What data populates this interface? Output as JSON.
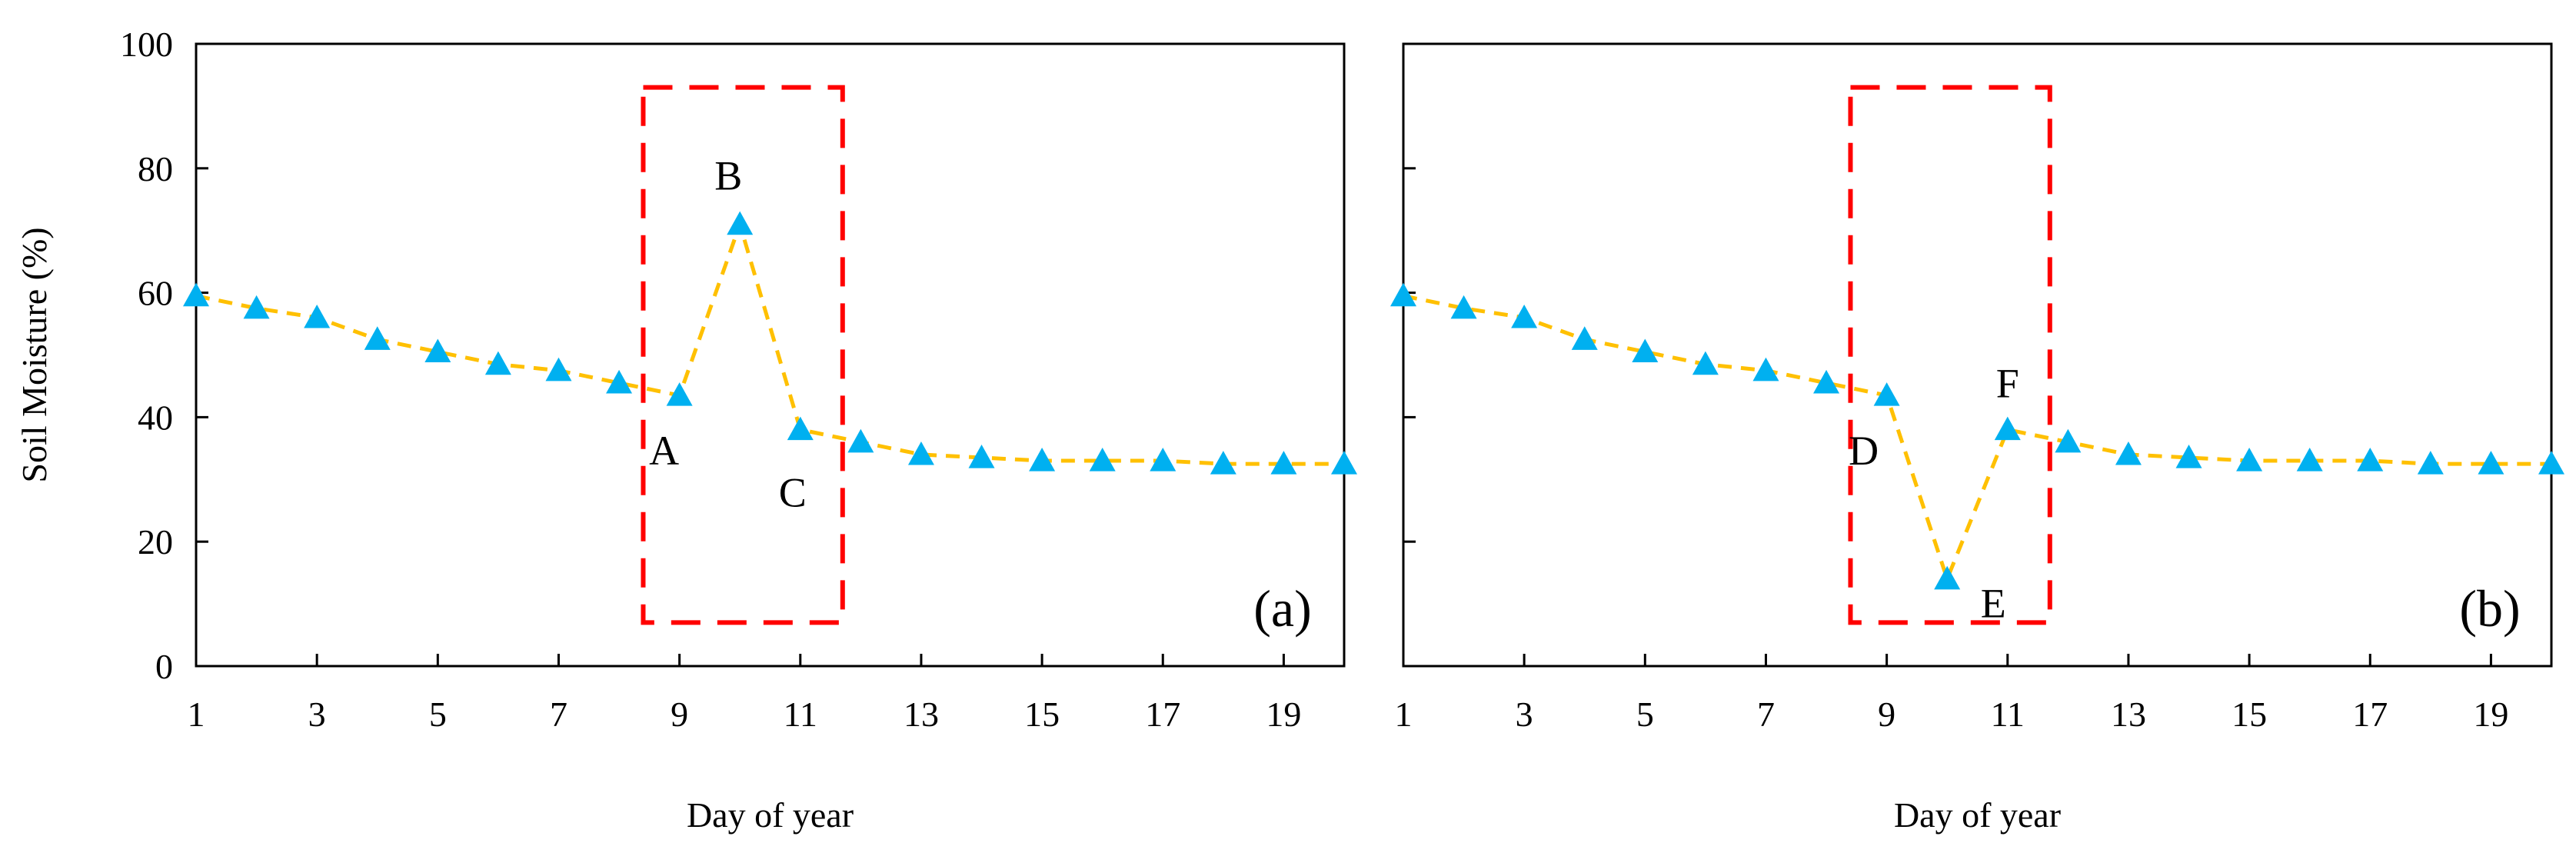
{
  "colors": {
    "line": "#FFC000",
    "marker": "#00B0F0",
    "highlight_box": "#FF0000",
    "axis": "#000000"
  },
  "chart_data": [
    {
      "type": "line",
      "panel_label": "(a)",
      "xlabel": "Day of year",
      "ylabel": "Soil Moisture (%)",
      "xlim": [
        1,
        20
      ],
      "ylim": [
        0,
        100
      ],
      "xticks": [
        1,
        3,
        5,
        7,
        9,
        11,
        13,
        15,
        17,
        19
      ],
      "yticks": [
        0,
        20,
        40,
        60,
        80,
        100
      ],
      "marker": "triangle",
      "line_style": "dashed",
      "x": [
        1,
        2,
        3,
        4,
        5,
        6,
        7,
        8,
        9,
        10,
        11,
        12,
        13,
        14,
        15,
        16,
        17,
        18,
        19,
        20
      ],
      "y": [
        59.5,
        57.5,
        56,
        52.5,
        50.5,
        48.5,
        47.5,
        45.5,
        43.5,
        71,
        38,
        36,
        34,
        33.5,
        33,
        33,
        33,
        32.5,
        32.5,
        32.5
      ],
      "highlight": {
        "x_range": [
          8.4,
          11.7
        ],
        "y_range": [
          7,
          93
        ]
      },
      "annotations": [
        {
          "text": "A",
          "x": 9,
          "y": 43.5
        },
        {
          "text": "B",
          "x": 10,
          "y": 71
        },
        {
          "text": "C",
          "x": 11,
          "y": 38
        }
      ]
    },
    {
      "type": "line",
      "panel_label": "(b)",
      "xlabel": "Day of year",
      "ylabel": "",
      "xlim": [
        1,
        20
      ],
      "ylim": [
        0,
        100
      ],
      "xticks": [
        1,
        3,
        5,
        7,
        9,
        11,
        13,
        15,
        17,
        19
      ],
      "yticks": [],
      "marker": "triangle",
      "line_style": "dashed",
      "x": [
        1,
        2,
        3,
        4,
        5,
        6,
        7,
        8,
        9,
        10,
        11,
        12,
        13,
        14,
        15,
        16,
        17,
        18,
        19,
        20
      ],
      "y": [
        59.5,
        57.5,
        56,
        52.5,
        50.5,
        48.5,
        47.5,
        45.5,
        43.5,
        14,
        38,
        36,
        34,
        33.5,
        33,
        33,
        33,
        32.5,
        32.5,
        32.5
      ],
      "highlight": {
        "x_range": [
          8.4,
          11.7
        ],
        "y_range": [
          7,
          93
        ]
      },
      "annotations": [
        {
          "text": "D",
          "x": 9,
          "y": 43.5
        },
        {
          "text": "E",
          "x": 10,
          "y": 14
        },
        {
          "text": "F",
          "x": 11,
          "y": 38
        }
      ]
    }
  ]
}
